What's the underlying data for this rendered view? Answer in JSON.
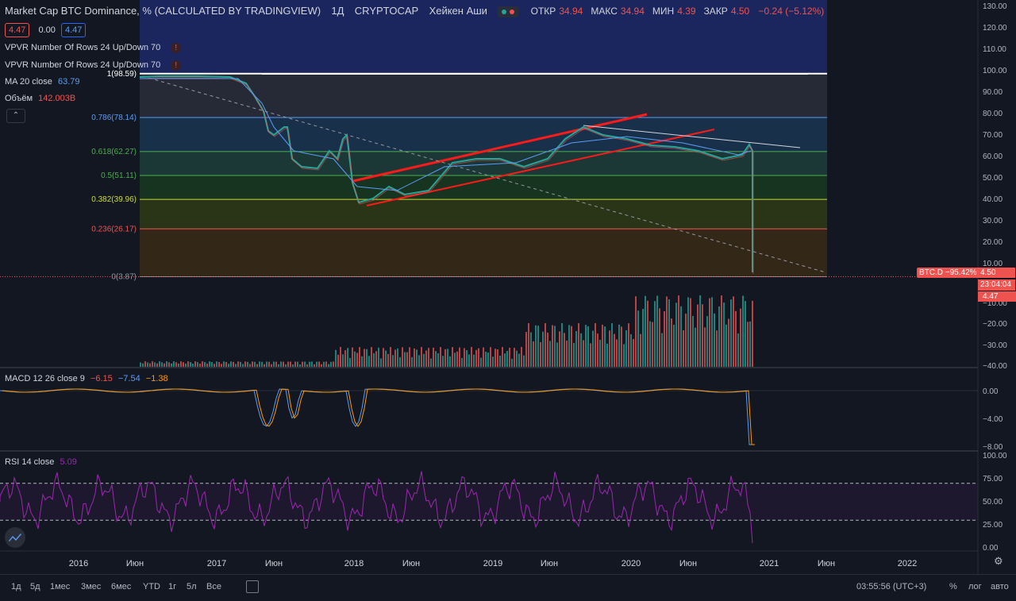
{
  "header": {
    "title": "Market Cap BTC Dominance, % (CALCULATED BY TRADINGVIEW)",
    "interval": "1Д",
    "exchange": "CRYPTOCAP",
    "chart_style": "Хейкен Аши",
    "ohlc": [
      {
        "key": "ОТКР",
        "val": "34.94"
      },
      {
        "key": "МАКС",
        "val": "34.94"
      },
      {
        "key": "МИН",
        "val": "4.39"
      },
      {
        "key": "ЗАКР",
        "val": "4.50"
      }
    ],
    "change": "−0.24 (−5.12%)",
    "sell_price": "4.47",
    "spread": "0.00",
    "buy_price": "4.47"
  },
  "indicators": {
    "vpvr1": "VPVR Number Of Rows 24 Up/Down 70",
    "vpvr2": "VPVR Number Of Rows 24 Up/Down 70",
    "ma_label": "MA 20 close",
    "ma_value": "63.79",
    "volume_label": "Объём",
    "volume_value": "142.003B",
    "macd_label": "MACD 12 26 close 9",
    "macd_v1": "−6.15",
    "macd_v2": "−7.54",
    "macd_v3": "−1.38",
    "rsi_label": "RSI 14 close",
    "rsi_value": "5.09"
  },
  "price_axis": {
    "ticks": [
      "130.00",
      "120.00",
      "110.00",
      "100.00",
      "90.00",
      "80.00",
      "70.00",
      "60.00",
      "50.00",
      "40.00",
      "30.00",
      "20.00",
      "10.00"
    ],
    "vol_ticks": [
      "−10.00",
      "−20.00",
      "−30.00",
      "−40.00"
    ],
    "macd_ticks": [
      "0.00",
      "−4.00",
      "−8.00"
    ],
    "rsi_ticks": [
      "100.00",
      "75.00",
      "50.00",
      "25.00",
      "0.00"
    ],
    "price_tag": "4.50",
    "countdown": "23:04:04",
    "symbol_tag": "BTC.D −95.42%",
    "last_tag": "4.47"
  },
  "fib_levels": [
    {
      "label": "1(98.59)",
      "value": 98.59,
      "color": "#ffffff"
    },
    {
      "label": "0.786(78.14)",
      "value": 78.14,
      "color": "#5b9cf6"
    },
    {
      "label": "0.618(62.27)",
      "value": 62.27,
      "color": "#4caf50"
    },
    {
      "label": "0.5(51.11)",
      "value": 51.11,
      "color": "#4caf50"
    },
    {
      "label": "0.382(39.96)",
      "value": 39.96,
      "color": "#cddc39"
    },
    {
      "label": "0.236(26.17)",
      "value": 26.17,
      "color": "#ef5350"
    },
    {
      "label": "0(3.87)",
      "value": 3.87,
      "color": "#9598a1"
    }
  ],
  "time_axis": [
    "2016",
    "Июн",
    "2017",
    "Июн",
    "2018",
    "Июн",
    "2019",
    "Июн",
    "2020",
    "Июн",
    "2021",
    "Июн",
    "2022"
  ],
  "bottom_bar": {
    "ranges": [
      "1д",
      "5д",
      "1мес",
      "3мес",
      "6мес",
      "YTD",
      "1г",
      "5л",
      "Все"
    ],
    "clock": "03:55:56 (UTC+3)",
    "percent": "%",
    "log": "лог",
    "auto": "авто"
  },
  "colors": {
    "background": "#131722",
    "up": "#26a69a",
    "down": "#ef5350",
    "rsi": "#9c27b0",
    "trend": "#ff0000"
  }
}
